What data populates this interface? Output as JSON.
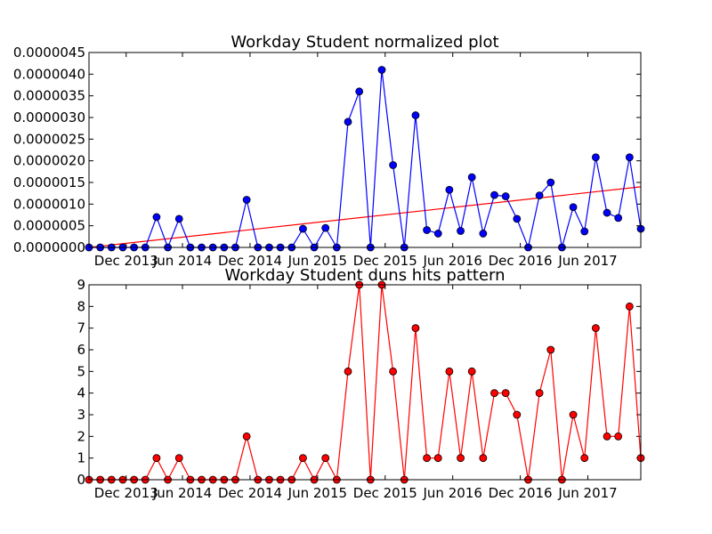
{
  "chart_data": [
    {
      "type": "line",
      "title": "Workday Student normalized plot",
      "xlabel": "",
      "ylabel": "",
      "ylim": [
        0,
        4.5e-06
      ],
      "yticks": [
        "0.0000000",
        "0.0000005",
        "0.0000010",
        "0.0000015",
        "0.0000020",
        "0.0000025",
        "0.0000030",
        "0.0000035",
        "0.0000040",
        "0.0000045"
      ],
      "xticks": [
        "Dec 2013",
        "Jun 2014",
        "Dec 2014",
        "Jun 2015",
        "Dec 2015",
        "Jun 2016",
        "Dec 2016",
        "Jun 2017"
      ],
      "grid": false,
      "series": [
        {
          "color": "#0000ff",
          "marker_color": "#0000ff",
          "values": [
            0,
            0,
            0,
            0,
            0,
            0,
            7e-07,
            0,
            6.6e-07,
            0,
            0,
            0,
            0,
            0,
            1.1e-06,
            0,
            0,
            0,
            0,
            4.3e-07,
            0,
            4.5e-07,
            0,
            2.9e-06,
            3.6e-06,
            0,
            4.1e-06,
            1.9e-06,
            0,
            3.05e-06,
            4e-07,
            3.2e-07,
            1.33e-06,
            3.8e-07,
            1.62e-06,
            3.2e-07,
            1.21e-06,
            1.18e-06,
            6.6e-07,
            0,
            1.2e-06,
            1.5e-06,
            0,
            9.3e-07,
            3.7e-07,
            2.08e-06,
            8e-07,
            6.8e-07,
            2.08e-06,
            4.3e-07
          ]
        }
      ],
      "trendline": {
        "color": "#ff0000",
        "start": 0,
        "end": 1.4e-06
      }
    },
    {
      "type": "line",
      "title": "Workday Student duns hits pattern",
      "xlabel": "",
      "ylabel": "",
      "ylim": [
        0,
        9
      ],
      "yticks": [
        "0",
        "1",
        "2",
        "3",
        "4",
        "5",
        "6",
        "7",
        "8",
        "9"
      ],
      "xticks": [
        "Dec 2013",
        "Jun 2014",
        "Dec 2014",
        "Jun 2015",
        "Dec 2015",
        "Jun 2016",
        "Dec 2016",
        "Jun 2017"
      ],
      "grid": false,
      "series": [
        {
          "color": "#ff0000",
          "marker_color": "#ff0000",
          "values": [
            0,
            0,
            0,
            0,
            0,
            0,
            1,
            0,
            1,
            0,
            0,
            0,
            0,
            0,
            2,
            0,
            0,
            0,
            0,
            1,
            0,
            1,
            0,
            5,
            9,
            0,
            9,
            5,
            0,
            7,
            1,
            1,
            5,
            1,
            5,
            1,
            4,
            4,
            3,
            0,
            4,
            6,
            0,
            3,
            1,
            7,
            2,
            2,
            8,
            1
          ]
        }
      ]
    }
  ]
}
